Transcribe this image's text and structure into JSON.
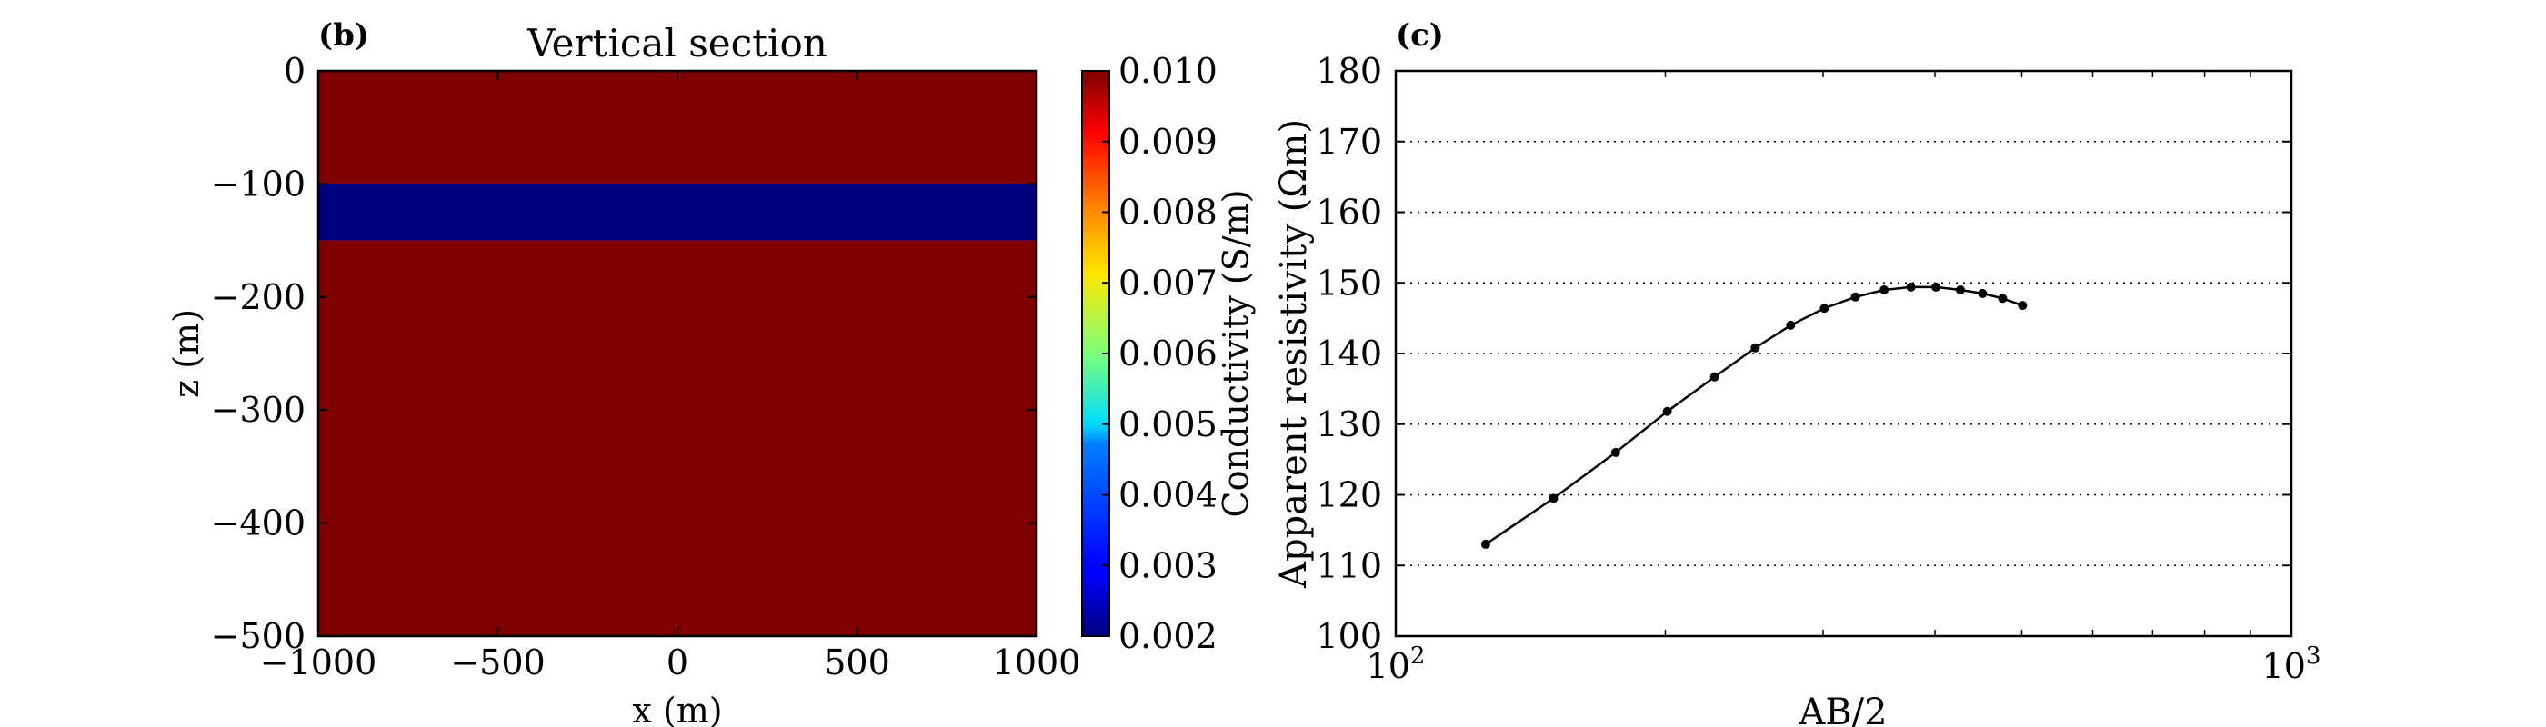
{
  "chart_data": [
    {
      "panel": "(b)",
      "type": "heatmap",
      "title": "Vertical section",
      "xlabel": "x (m)",
      "ylabel": "z (m)",
      "xlim": [
        -1000,
        1000
      ],
      "ylim": [
        -500,
        0
      ],
      "xticks": [
        -1000,
        -500,
        0,
        500,
        1000
      ],
      "yticks": [
        0,
        -100,
        -200,
        -300,
        -400,
        -500
      ],
      "xtick_labels": [
        "−1000",
        "−500",
        "0",
        "500",
        "1000"
      ],
      "ytick_labels": [
        "0",
        "−100",
        "−200",
        "−300",
        "−400",
        "−500"
      ],
      "layers": [
        {
          "z_top": 0,
          "z_bottom": -100,
          "conductivity": 0.01
        },
        {
          "z_top": -100,
          "z_bottom": -150,
          "conductivity": 0.002
        },
        {
          "z_top": -150,
          "z_bottom": -500,
          "conductivity": 0.01
        }
      ],
      "colorbar": {
        "label": "Conductivity (S/m)",
        "range": [
          0.002,
          0.01
        ],
        "colormap": "jet",
        "ticks": [
          0.01,
          0.009,
          0.008,
          0.007,
          0.006,
          0.005,
          0.004,
          0.003,
          0.002
        ],
        "tick_labels": [
          "0.010",
          "0.009",
          "0.008",
          "0.007",
          "0.006",
          "0.005",
          "0.004",
          "0.003",
          "0.002"
        ]
      }
    },
    {
      "panel": "(c)",
      "type": "line",
      "xlabel": "AB/2",
      "ylabel": "Apparent resistivity (Ωm)",
      "xscale": "log",
      "xlim": [
        100,
        1000
      ],
      "ylim": [
        100,
        180
      ],
      "grid": "horizontal dotted",
      "xticks": [
        100,
        1000
      ],
      "xtick_base": [
        "10",
        "10"
      ],
      "xtick_exp": [
        "2",
        "3"
      ],
      "yticks": [
        100,
        110,
        120,
        130,
        140,
        150,
        160,
        170,
        180
      ],
      "ytick_labels": [
        "100",
        "110",
        "120",
        "130",
        "140",
        "150",
        "160",
        "170",
        "180"
      ],
      "series": [
        {
          "x": [
            126,
            150,
            176,
            201,
            227,
            252,
            276,
            301,
            326,
            351,
            376,
            401,
            427,
            452,
            476,
            501
          ],
          "y": [
            113.0,
            119.5,
            126.0,
            131.8,
            136.7,
            140.8,
            144.0,
            146.4,
            148.0,
            149.0,
            149.4,
            149.4,
            149.0,
            148.5,
            147.8,
            146.8
          ]
        }
      ]
    }
  ]
}
